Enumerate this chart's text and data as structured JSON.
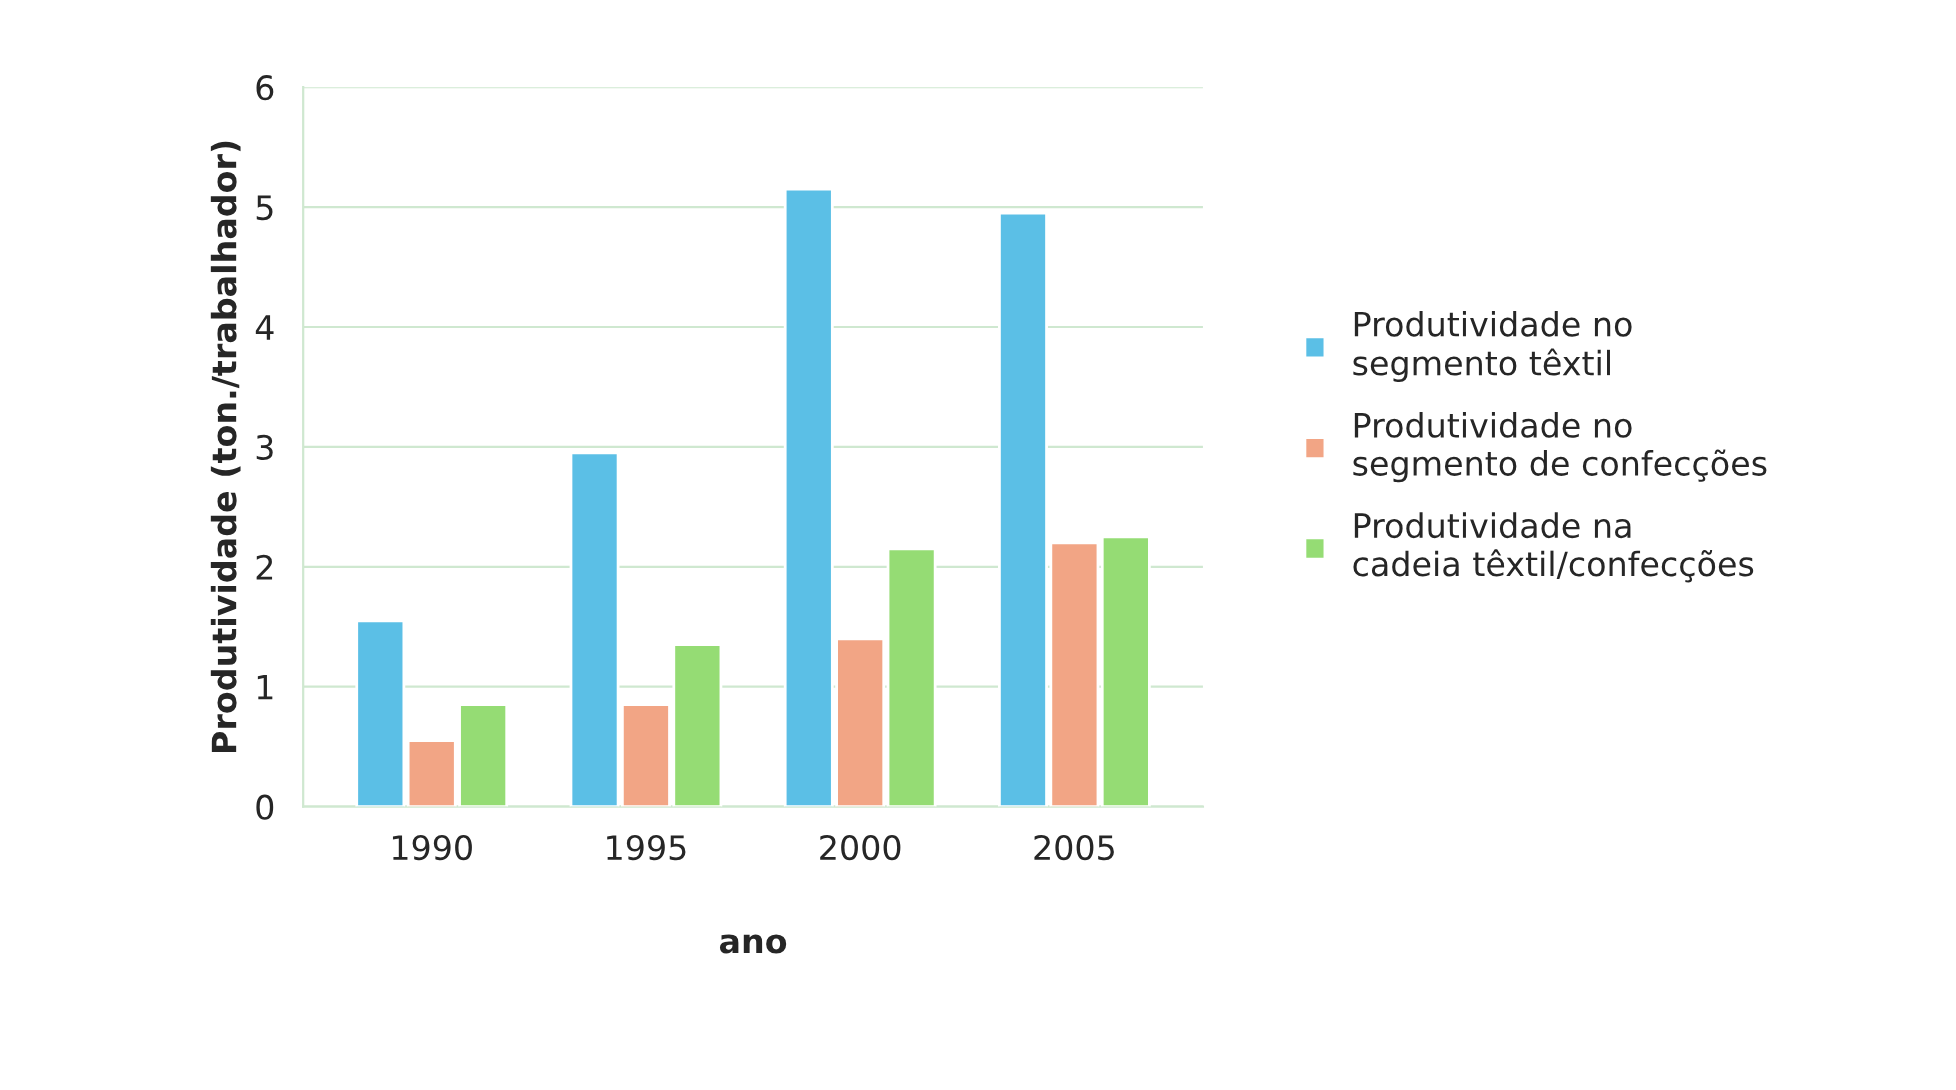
{
  "chart_data": {
    "type": "bar",
    "xlabel": "ano",
    "ylabel": "Produtividade (ton./trabalhador)",
    "categories": [
      "1990",
      "1995",
      "2000",
      "2005"
    ],
    "series": [
      {
        "name": "Produtividade no segmento têxtil",
        "color": "#5bbfe6",
        "values": [
          1.55,
          2.95,
          5.15,
          4.95
        ]
      },
      {
        "name": "Produtividade no segmento de confecções",
        "color": "#f2a585",
        "values": [
          0.55,
          0.85,
          1.4,
          2.2
        ]
      },
      {
        "name": "Produtividade na cadeia têxtil/confecções",
        "color": "#95dc74",
        "values": [
          0.85,
          1.35,
          2.15,
          2.25
        ]
      }
    ],
    "ylim": [
      0,
      6
    ],
    "yticks": [
      0,
      1,
      2,
      3,
      4,
      5,
      6
    ],
    "grid": "y",
    "legend": "right"
  }
}
